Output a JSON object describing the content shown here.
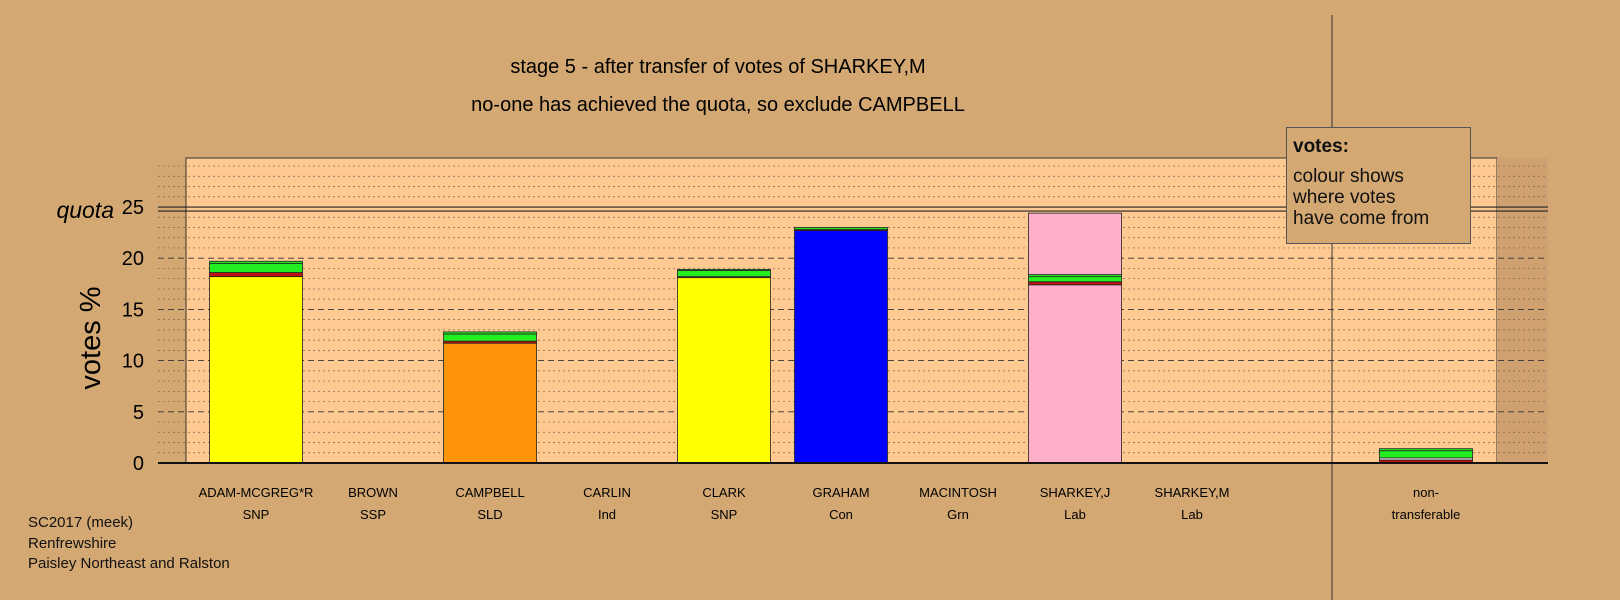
{
  "title_line1": "stage 5 - after transfer of votes of SHARKEY,M",
  "title_line2": "no-one has achieved the quota, so exclude CAMPBELL",
  "legend": {
    "title": "votes:",
    "lines": [
      "colour shows",
      "where votes",
      "have come from"
    ]
  },
  "footer": [
    "SC2017 (meek)",
    "Renfrewshire",
    "Paisley Northeast and Ralston"
  ],
  "colors": {
    "background": "#d4a873",
    "plot_background": "#ffc992",
    "snp": "#ffff00",
    "sld": "#ff9408",
    "con": "#0000ff",
    "lab": "#ffb0c8",
    "transfer_green": "#22ee22",
    "transfer_red": "#c01010"
  },
  "chart_data": {
    "type": "bar",
    "stacked": true,
    "ylabel": "votes %",
    "quota_label": "quota",
    "quota": 24.8,
    "ylim": [
      0,
      30
    ],
    "yticks": [
      0,
      5,
      10,
      15,
      20,
      25
    ],
    "grid": "dashed every 5, dotted every 1",
    "categories": [
      {
        "name": "ADAM-MCGREG*R",
        "party": "SNP"
      },
      {
        "name": "BROWN",
        "party": "SSP"
      },
      {
        "name": "CAMPBELL",
        "party": "SLD"
      },
      {
        "name": "CARLIN",
        "party": "Ind"
      },
      {
        "name": "CLARK",
        "party": "SNP"
      },
      {
        "name": "GRAHAM",
        "party": "Con"
      },
      {
        "name": "MACINTOSH",
        "party": "Grn"
      },
      {
        "name": "SHARKEY,J",
        "party": "Lab"
      },
      {
        "name": "SHARKEY,M",
        "party": "Lab"
      },
      {
        "name": "non-",
        "party": "transferable"
      }
    ],
    "segments": [
      [
        {
          "color": "#ffff00",
          "value": 18.2
        },
        {
          "color": "#c01010",
          "value": 0.4
        },
        {
          "color": "#22ee22",
          "value": 0.9
        },
        {
          "color": "#22ee22",
          "value": 0.2
        }
      ],
      [],
      [
        {
          "color": "#ff9408",
          "value": 11.7
        },
        {
          "color": "#c01010",
          "value": 0.2
        },
        {
          "color": "#22ee22",
          "value": 0.7
        },
        {
          "color": "#22ee22",
          "value": 0.2
        }
      ],
      [],
      [
        {
          "color": "#ffff00",
          "value": 18.1
        },
        {
          "color": "#c01010",
          "value": 0.1
        },
        {
          "color": "#22ee22",
          "value": 0.6
        },
        {
          "color": "#22ee22",
          "value": 0.1
        }
      ],
      [
        {
          "color": "#0000ff",
          "value": 22.7
        },
        {
          "color": "#c01010",
          "value": 0.1
        },
        {
          "color": "#22ee22",
          "value": 0.2
        }
      ],
      [],
      [
        {
          "color": "#ffb0c8",
          "value": 17.4
        },
        {
          "color": "#c01010",
          "value": 0.3
        },
        {
          "color": "#22ee22",
          "value": 0.5
        },
        {
          "color": "#22ee22",
          "value": 0.2
        },
        {
          "color": "#ffb0c8",
          "value": 6.0
        }
      ],
      [],
      [
        {
          "color": "#c01010",
          "value": 0.3
        },
        {
          "color": "#ffffff",
          "value": 0.2
        },
        {
          "color": "#22ee22",
          "value": 0.7
        },
        {
          "color": "#22ee22",
          "value": 0.2
        }
      ]
    ]
  }
}
